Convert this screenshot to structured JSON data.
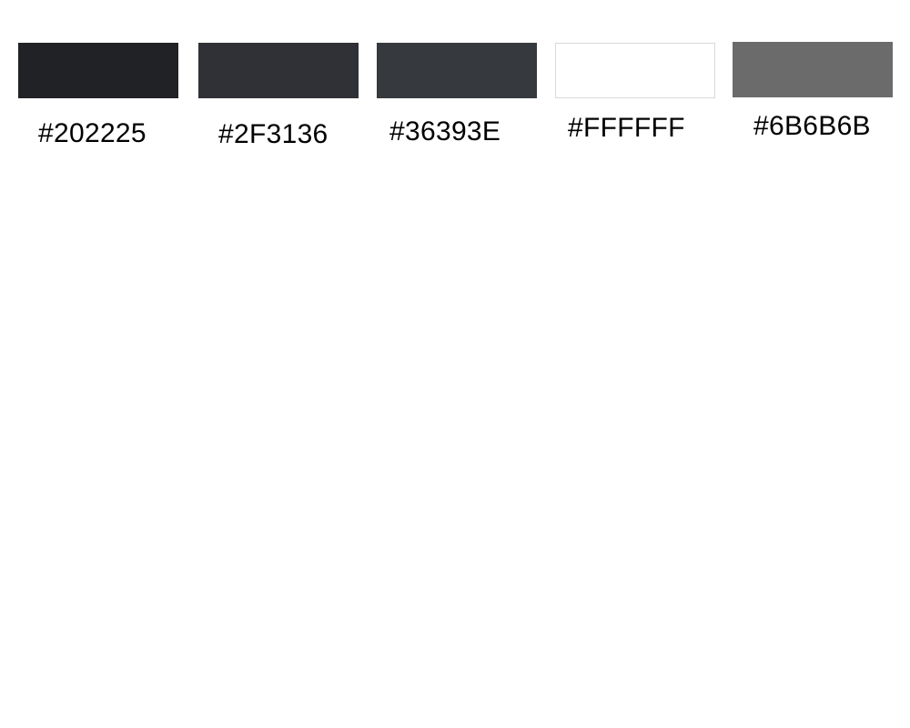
{
  "swatches": [
    {
      "hex": "#202225",
      "label": "#202225"
    },
    {
      "hex": "#2F3136",
      "label": "#2F3136"
    },
    {
      "hex": "#36393E",
      "label": "#36393E"
    },
    {
      "hex": "#FFFFFF",
      "label": "#FFFFFF"
    },
    {
      "hex": "#6B6B6B",
      "label": "#6B6B6B"
    }
  ]
}
